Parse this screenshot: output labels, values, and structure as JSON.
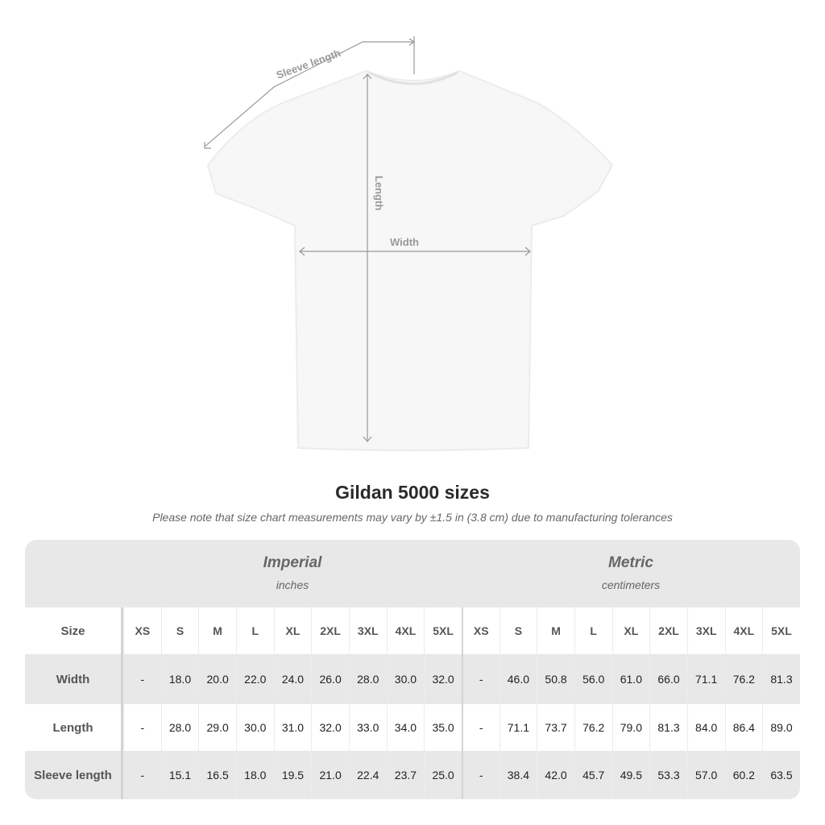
{
  "diagram": {
    "sleeve_label": "Sleeve length",
    "length_label": "Length",
    "width_label": "Width"
  },
  "title": "Gildan 5000 sizes",
  "note": "Please note that size chart measurements may vary by ±1.5 in (3.8 cm) due to manufacturing tolerances",
  "groups": {
    "imperial": {
      "name": "Imperial",
      "unit": "inches"
    },
    "metric": {
      "name": "Metric",
      "unit": "centimeters"
    }
  },
  "size_header": "Size",
  "sizes": [
    "XS",
    "S",
    "M",
    "L",
    "XL",
    "2XL",
    "3XL",
    "4XL",
    "5XL"
  ],
  "rows": [
    {
      "label": "Width",
      "imperial": [
        "-",
        "18.0",
        "20.0",
        "22.0",
        "24.0",
        "26.0",
        "28.0",
        "30.0",
        "32.0"
      ],
      "metric": [
        "-",
        "46.0",
        "50.8",
        "56.0",
        "61.0",
        "66.0",
        "71.1",
        "76.2",
        "81.3"
      ]
    },
    {
      "label": "Length",
      "imperial": [
        "-",
        "28.0",
        "29.0",
        "30.0",
        "31.0",
        "32.0",
        "33.0",
        "34.0",
        "35.0"
      ],
      "metric": [
        "-",
        "71.1",
        "73.7",
        "76.2",
        "79.0",
        "81.3",
        "84.0",
        "86.4",
        "89.0"
      ]
    },
    {
      "label": "Sleeve length",
      "imperial": [
        "-",
        "15.1",
        "16.5",
        "18.0",
        "19.5",
        "21.0",
        "22.4",
        "23.7",
        "25.0"
      ],
      "metric": [
        "-",
        "38.4",
        "42.0",
        "45.7",
        "49.5",
        "53.3",
        "57.0",
        "60.2",
        "63.5"
      ]
    }
  ]
}
